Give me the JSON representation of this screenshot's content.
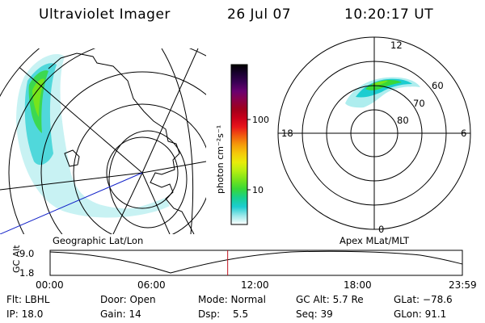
{
  "header": {
    "instrument": "Ultraviolet Imager",
    "date": "26 Jul 07",
    "time": "10:20:17 UT"
  },
  "colorbar": {
    "unit_label": "photon cm⁻²s⁻¹",
    "ticks": [
      "100",
      "10"
    ],
    "tick_values": [
      100,
      10
    ],
    "colors": [
      "#000000",
      "#1a0030",
      "#3a0055",
      "#6a0070",
      "#8a0048",
      "#a0001c",
      "#c8001a",
      "#e8151a",
      "#f05a10",
      "#f59a0a",
      "#f5c90a",
      "#e8ec0a",
      "#b4ef12",
      "#76e41c",
      "#38d838",
      "#18d090",
      "#1ccdd0",
      "#9ae8ea",
      "#ffffff"
    ]
  },
  "left_panel": {
    "caption": "Geographic Lat/Lon"
  },
  "right_panel": {
    "caption": "Apex  MLat/MLT",
    "mlt_labels": {
      "top": "12",
      "left": "18",
      "right": "6",
      "bottom": "0"
    },
    "lat_labels": [
      "60",
      "70",
      "80"
    ]
  },
  "timeline": {
    "axis_label": "GC Alt",
    "y_ticks": [
      "9.0",
      "1.8"
    ],
    "x_ticks": [
      "00:00",
      "06:00",
      "12:00",
      "18:00",
      "23:59"
    ],
    "current_time_fraction": 0.4307
  },
  "status": {
    "flt": "Flt: LBHL",
    "ip": "IP: 18.0",
    "door": "Door: Open",
    "gain": "Gain: 14",
    "mode": "Mode: Normal",
    "dsp_label": "Dsp:",
    "dsp_value": "5.5",
    "gc_alt": "GC Alt: 5.7 Re",
    "seq": "Seq: 39",
    "glat": "GLat: −78.6",
    "glon": "GLon:  91.1"
  }
}
